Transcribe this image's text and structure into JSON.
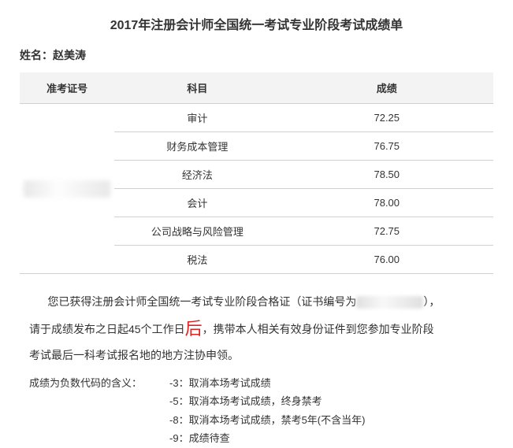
{
  "title": "2017年注册会计师全国统一考试专业阶段考试成绩单",
  "nameLabel": "姓名：",
  "name": "赵美涛",
  "headers": {
    "exam": "准考证号",
    "subject": "科目",
    "score": "成绩"
  },
  "rows": [
    {
      "subject": "审计",
      "score": "72.25"
    },
    {
      "subject": "财务成本管理",
      "score": "76.75"
    },
    {
      "subject": "经济法",
      "score": "78.50"
    },
    {
      "subject": "会计",
      "score": "78.00"
    },
    {
      "subject": "公司战略与风险管理",
      "score": "72.75"
    },
    {
      "subject": "税法",
      "score": "76.00"
    }
  ],
  "notice": {
    "line1a": "您已获得注册会计师全国统一考试专业阶段合格证（证书编号为",
    "line1b": "），",
    "line2a": "请于成绩发布之日起45个工作日",
    "bigRed": "后",
    "line2b": "，携带本人相关有效身份证件到您参加专业阶段",
    "line3": "考试最后一科考试报名地的地方注协申领。"
  },
  "legend": {
    "label": "成绩为负数代码的含义：",
    "items": [
      "-3：取消本场考试成绩",
      "-5：取消本场考试成绩，终身禁考",
      "-8：取消本场考试成绩，禁考5年(不含当年)",
      "-9：成绩待查"
    ]
  },
  "colors": {
    "headerBg": "#f3f3f3",
    "border": "#d0d0d0",
    "text": "#333333",
    "accentRed": "#dd2222"
  }
}
